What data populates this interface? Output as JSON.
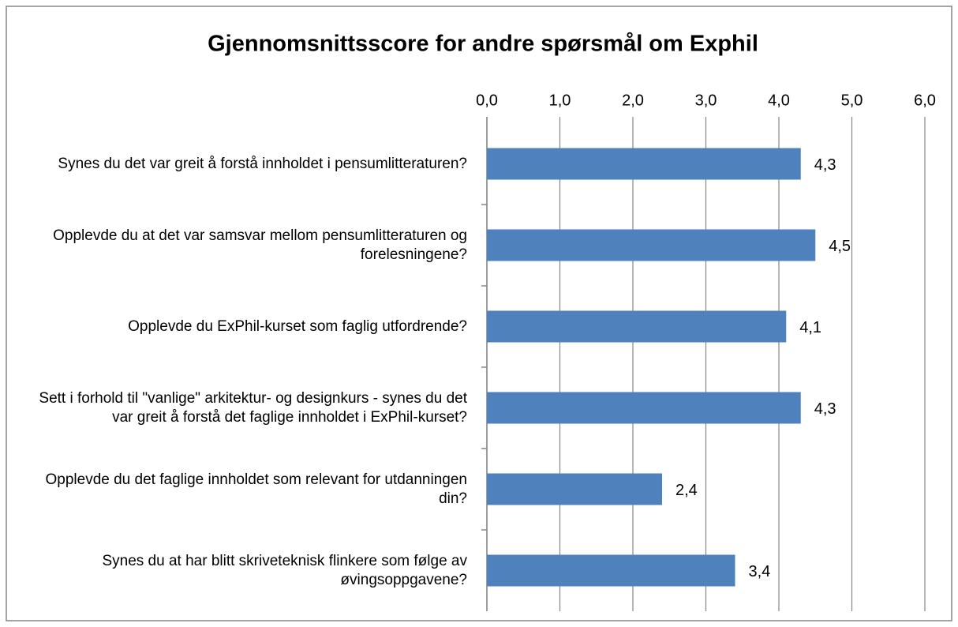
{
  "chart_data": {
    "type": "barh",
    "title": "Gjennomsnittsscore for andre spørsmål om Exphil",
    "categories": [
      "Synes du det var greit å forstå innholdet i pensumlitteraturen?",
      "Opplevde du at det var samsvar mellom pensumlitteraturen og forelesningene?",
      "Opplevde du ExPhil-kurset som faglig utfordrende?",
      "Sett i forhold til \"vanlige\" arkitektur- og designkurs - synes du det var greit å forstå det faglige innholdet i ExPhil-kurset?",
      "Opplevde du det faglige innholdet som relevant for utdanningen din?",
      "Synes du at har blitt skriveteknisk flinkere som følge av øvingsoppgavene?"
    ],
    "values": [
      4.3,
      4.5,
      4.1,
      4.3,
      2.4,
      3.4
    ],
    "value_labels": [
      "4,3",
      "4,5",
      "4,1",
      "4,3",
      "2,4",
      "3,4"
    ],
    "color": "#4f81bd",
    "xlim": [
      0,
      6
    ],
    "xticks": [
      {
        "value": 0,
        "label": "0,0"
      },
      {
        "value": 1,
        "label": "1,0"
      },
      {
        "value": 2,
        "label": "2,0"
      },
      {
        "value": 3,
        "label": "3,0"
      },
      {
        "value": 4,
        "label": "4,0"
      },
      {
        "value": 5,
        "label": "5,0"
      },
      {
        "value": 6,
        "label": "6,0"
      }
    ],
    "grid": true
  }
}
